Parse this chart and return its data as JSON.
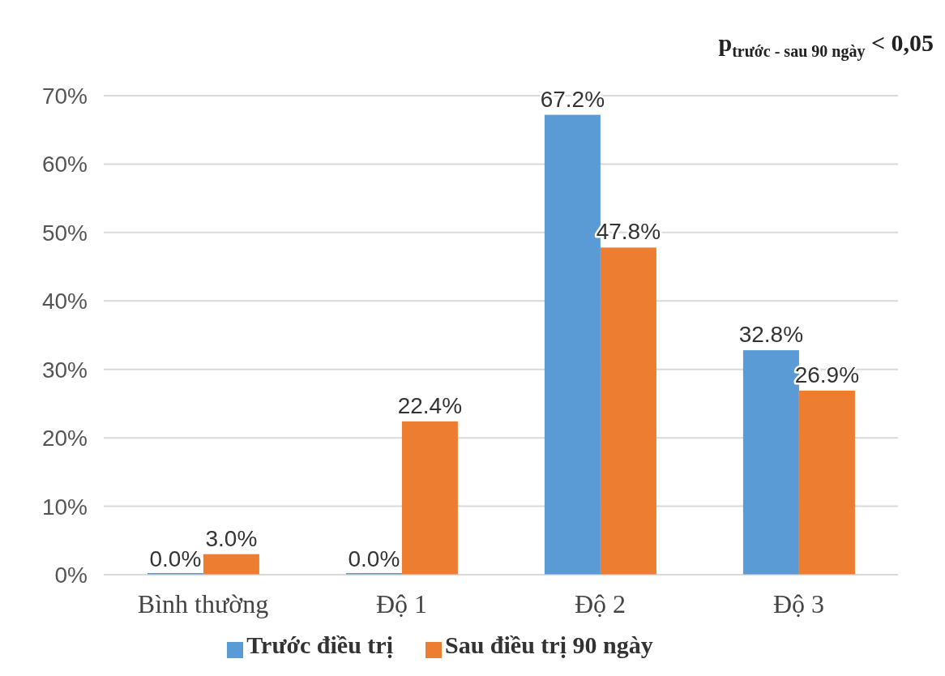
{
  "chart_data": {
    "type": "bar",
    "annotations": [
      "p$_{trước - sau 90 ngày}$ < 0,05"
    ],
    "categories": [
      "Bình thường",
      "Độ 1",
      "Độ 2",
      "Độ 3"
    ],
    "series": [
      {
        "name": "Trước điều trị",
        "color": "#5b9bd5",
        "values": [
          0.0,
          0.0,
          67.2,
          32.8
        ],
        "value_labels": [
          "0.0%",
          "0.0%",
          "67.2%",
          "32.8%"
        ]
      },
      {
        "name": "Sau điều trị 90 ngày",
        "color": "#ed7d31",
        "values": [
          3.0,
          22.4,
          47.8,
          26.9
        ],
        "value_labels": [
          "3.0%",
          "22.4%",
          "47.8%",
          "26.9%"
        ]
      }
    ],
    "ylim": [
      0,
      70
    ],
    "yticks": [
      {
        "value": 0,
        "label": "0%"
      },
      {
        "value": 10,
        "label": "10%"
      },
      {
        "value": 20,
        "label": "20%"
      },
      {
        "value": 30,
        "label": "30%"
      },
      {
        "value": 40,
        "label": "40%"
      },
      {
        "value": 50,
        "label": "50%"
      },
      {
        "value": 60,
        "label": "60%"
      },
      {
        "value": 70,
        "label": "70%"
      }
    ],
    "grid": "y",
    "legend": "bottom"
  }
}
